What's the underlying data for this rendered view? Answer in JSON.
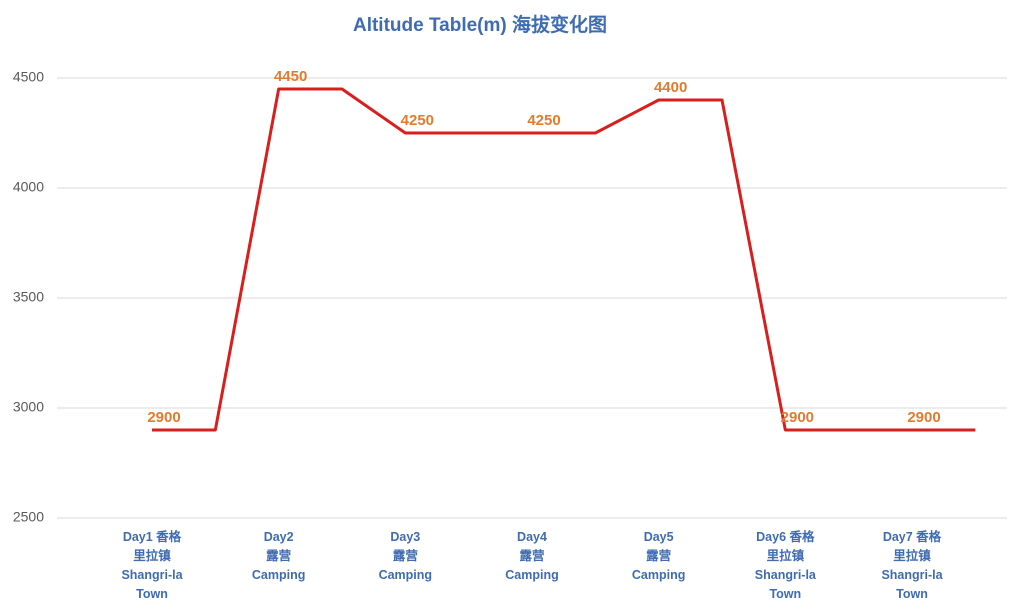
{
  "chart_data": {
    "type": "line",
    "title": "Altitude Table(m) 海拔变化图",
    "x": [
      1,
      1.5,
      2,
      2.5,
      3,
      3.5,
      4,
      4.5,
      5,
      5.5,
      6,
      6.5,
      7,
      7.5
    ],
    "values": [
      2900,
      2900,
      4450,
      4450,
      4250,
      4250,
      4250,
      4250,
      4400,
      4400,
      2900,
      2900,
      2900,
      2900
    ],
    "color": "#d91e1e",
    "xlim": [
      0.25,
      7.75
    ],
    "xticks": [
      {
        "value": 1,
        "label": "Day1 香格\n里拉镇\nShangri-la\nTown"
      },
      {
        "value": 2,
        "label": "Day2\n露营\nCamping"
      },
      {
        "value": 3,
        "label": "Day3\n露营\nCamping"
      },
      {
        "value": 4,
        "label": "Day4\n露营\nCamping"
      },
      {
        "value": 5,
        "label": "Day5\n露营\nCamping"
      },
      {
        "value": 6,
        "label": "Day6 香格\n里拉镇\nShangri-la\nTown"
      },
      {
        "value": 7,
        "label": "Day7 香格\n里拉镇\nShangri-la\nTown"
      }
    ],
    "ylim": [
      2500,
      4500
    ],
    "yticks": [
      2500,
      3000,
      3500,
      4000,
      4500
    ],
    "grid": true
  }
}
